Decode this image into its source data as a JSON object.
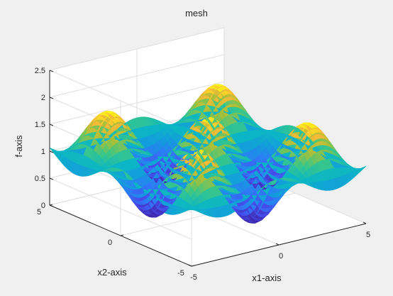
{
  "chart_data": {
    "type": "surface",
    "title": "mesh",
    "xlabel": "x1-axis",
    "ylabel": "x2-axis",
    "zlabel": "f-axis",
    "xlim": [
      -5,
      5
    ],
    "ylim": [
      -5,
      5
    ],
    "zlim": [
      0,
      2.5
    ],
    "x_ticks": [
      -5,
      0,
      5
    ],
    "y_ticks": [
      -5,
      0,
      5
    ],
    "z_ticks": [
      0,
      0.5,
      1,
      1.5,
      2,
      2.5
    ],
    "x_tick_labels": [
      "-5",
      "0",
      "5"
    ],
    "y_tick_labels": [
      "-5",
      "0",
      "5"
    ],
    "z_tick_labels": [
      "0",
      "0.5",
      "1",
      "1.5",
      "2",
      "2.5"
    ],
    "grid": true,
    "colormap": "parula",
    "surface": {
      "function": "f = 1 + 0.8*cos(x1)*cos(x2)",
      "grid_size": 48,
      "z_range": [
        0.2,
        1.8
      ]
    }
  },
  "colors": {
    "figure_background": "#f0f0f0",
    "axes_background": "#ffffff",
    "grid": "#dedede",
    "axis_line": "#262626"
  }
}
